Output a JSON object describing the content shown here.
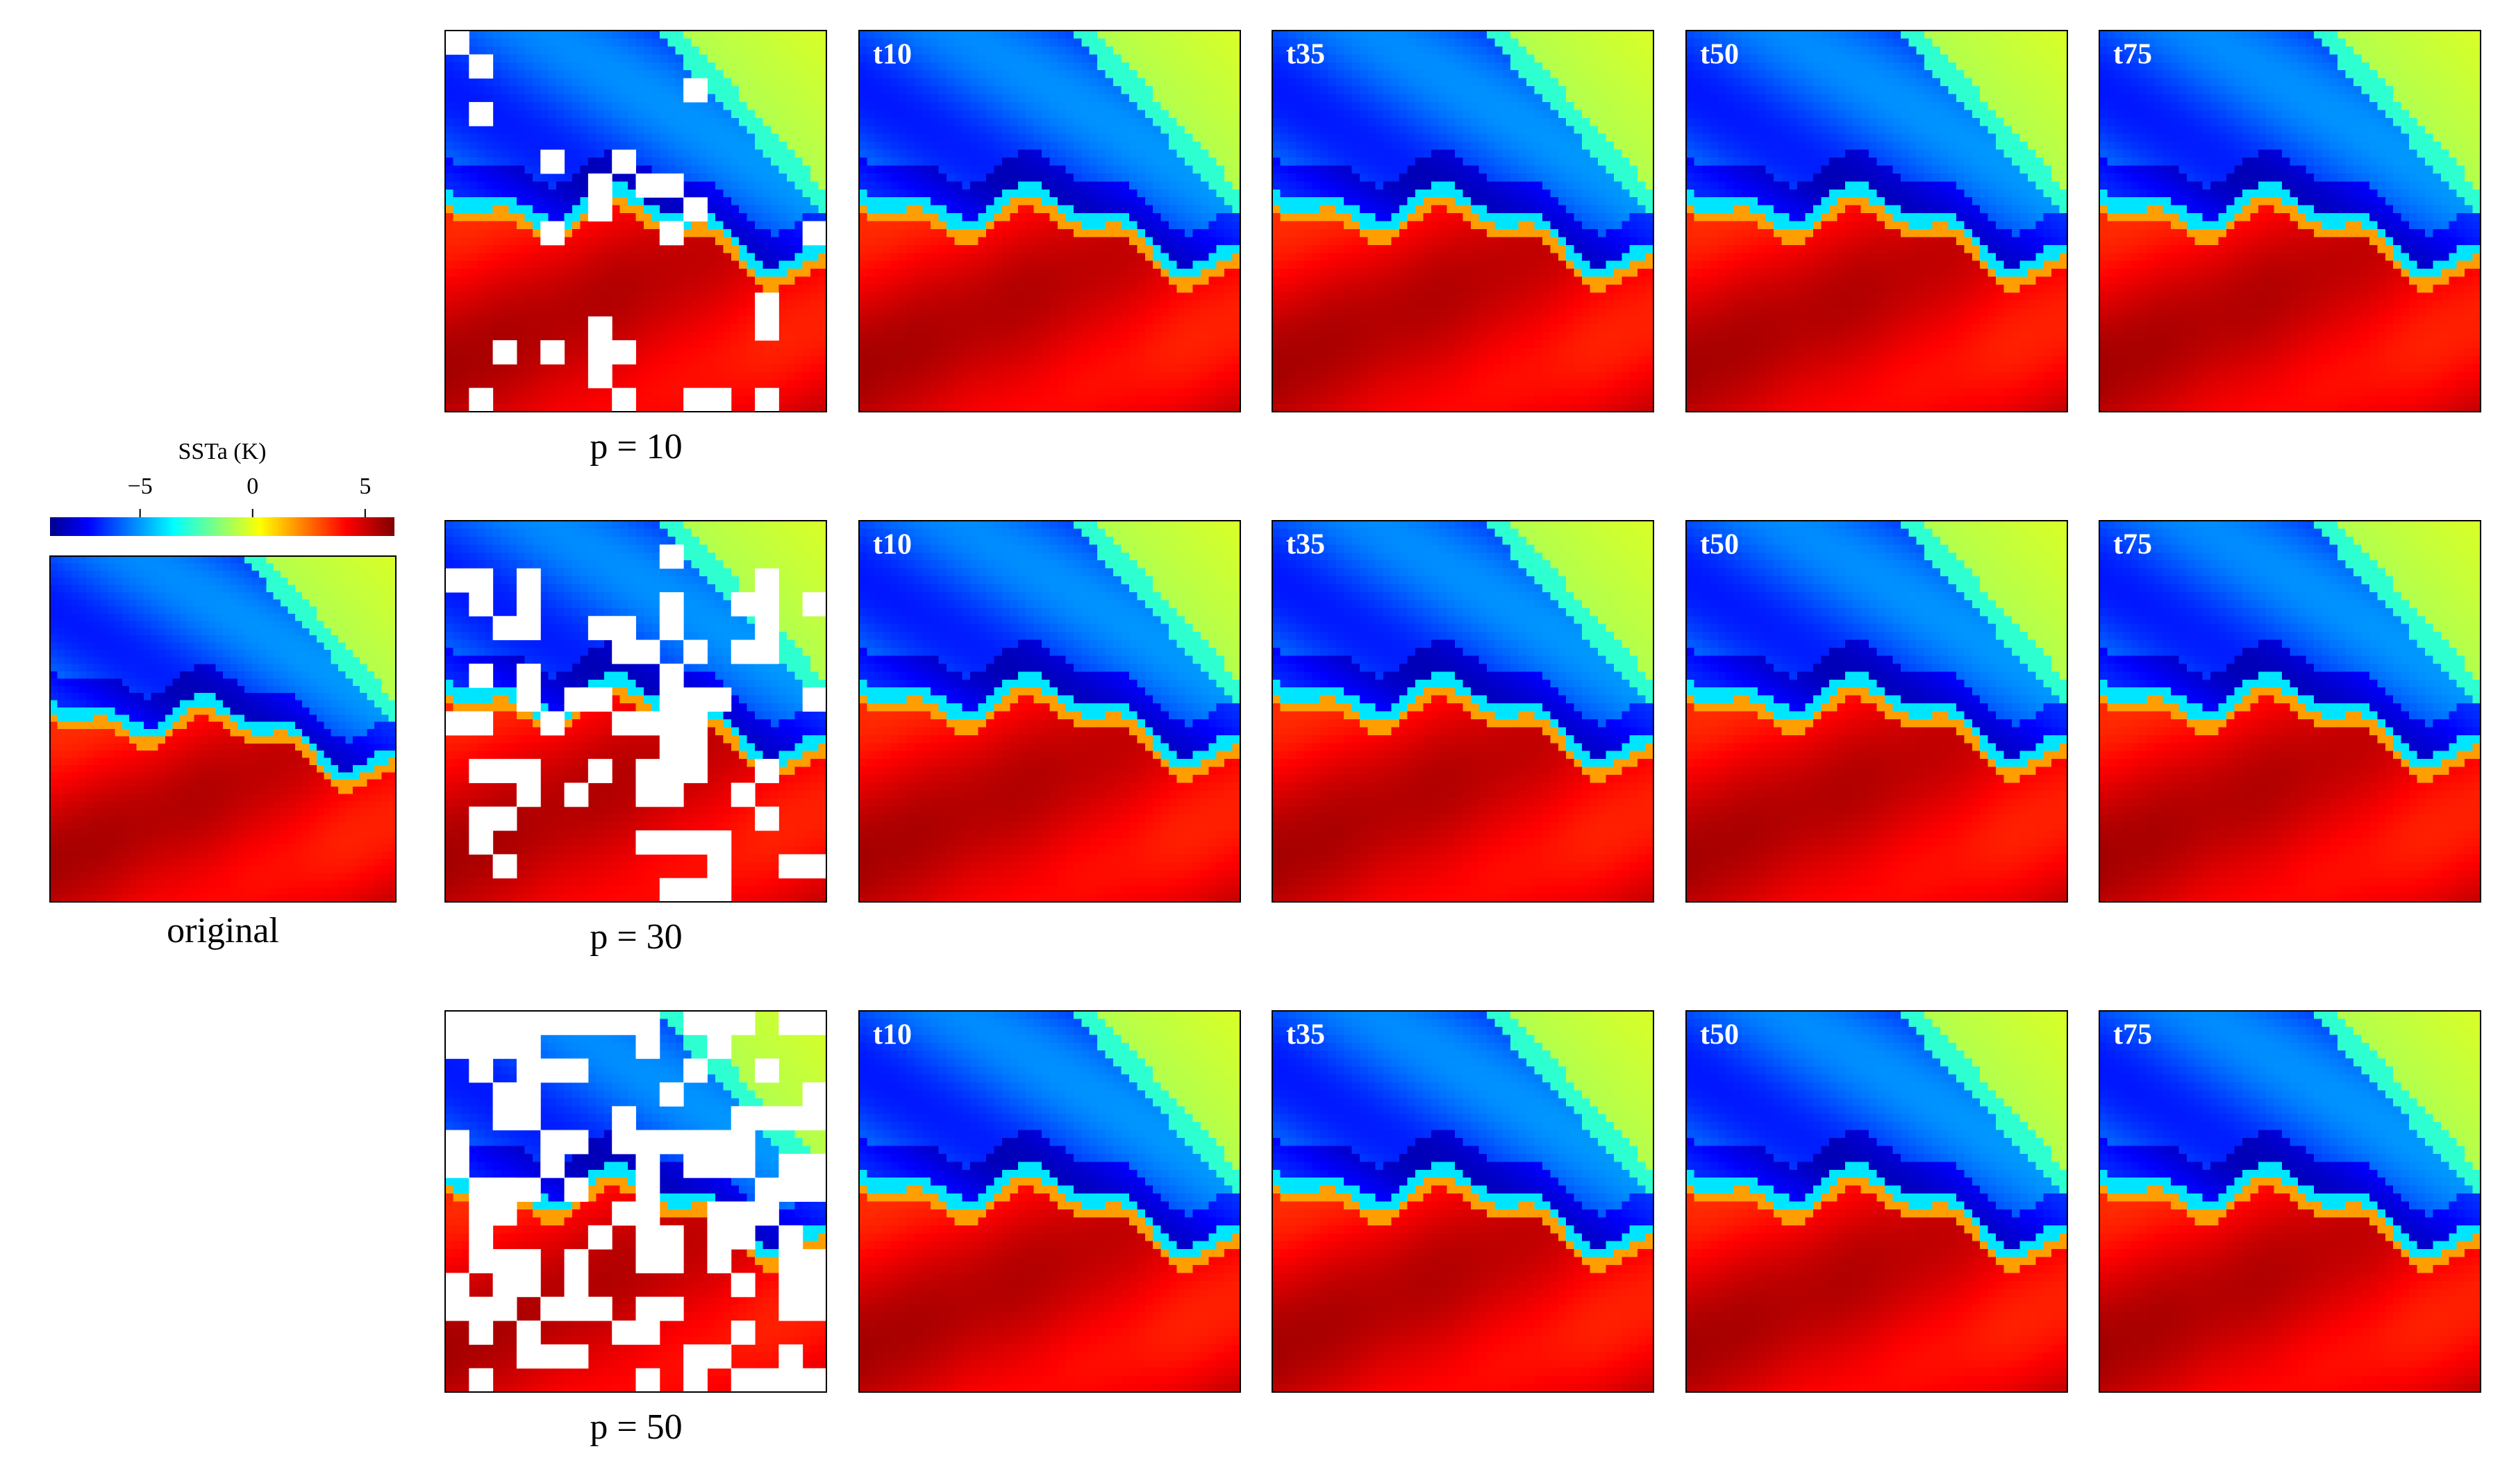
{
  "colorbar": {
    "title": "SSTa (K)",
    "lim": [
      -9,
      6.3
    ],
    "ticks": [
      {
        "value": -5,
        "label": "−5"
      },
      0,
      5
    ]
  },
  "original": {
    "label": "original"
  },
  "rows": [
    {
      "label": "p = 10",
      "panels": [
        "t10",
        "t35",
        "t50",
        "t75"
      ]
    },
    {
      "label": "p = 30",
      "panels": [
        "t10",
        "t35",
        "t50",
        "t75"
      ]
    },
    {
      "label": "p = 50",
      "panels": [
        "t10",
        "t35",
        "t50",
        "t75"
      ]
    }
  ]
}
